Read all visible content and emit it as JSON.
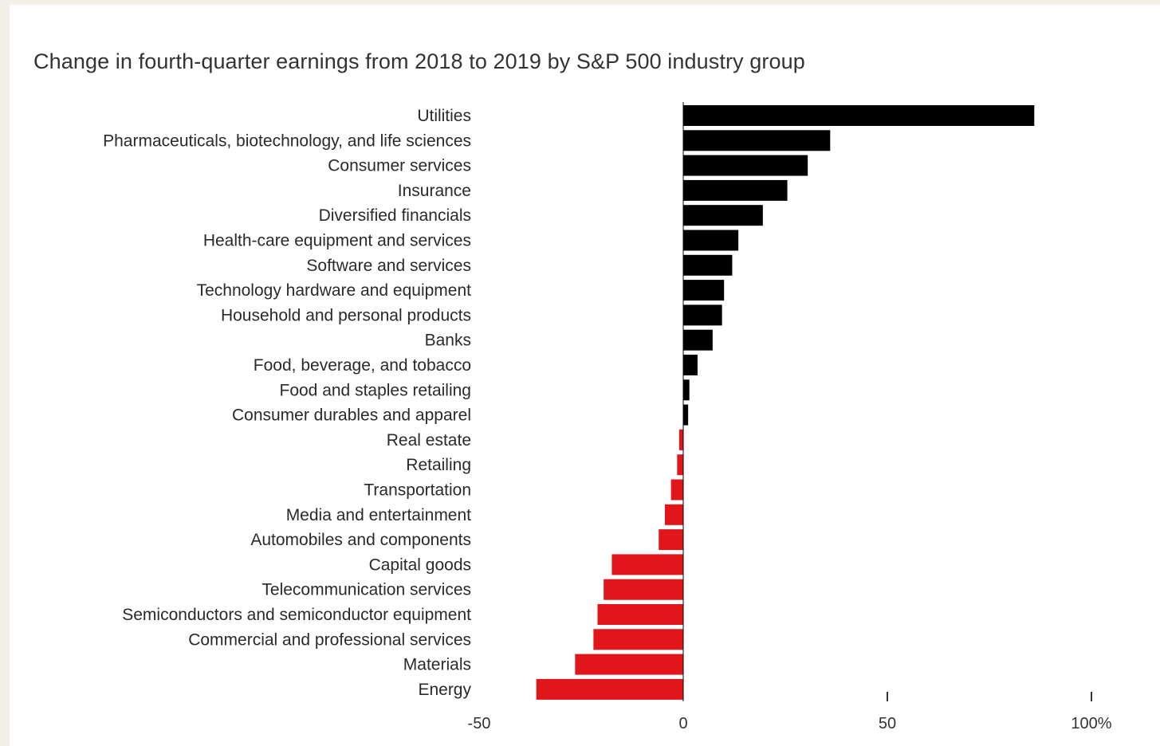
{
  "chart_data": {
    "type": "bar",
    "orientation": "horizontal",
    "title": "Change in fourth-quarter earnings from 2018 to 2019 by S&P 500 industry group",
    "categories": [
      "Utilities",
      "Pharmaceuticals, biotechnology, and life sciences",
      "Consumer services",
      "Insurance",
      "Diversified financials",
      "Health-care equipment and services",
      "Software and services",
      "Technology hardware and equipment",
      "Household and personal products",
      "Banks",
      "Food, beverage, and tobacco",
      "Food and staples retailing",
      "Consumer durables and apparel",
      "Real estate",
      "Retailing",
      "Transportation",
      "Media and entertainment",
      "Automobiles and components",
      "Capital goods",
      "Telecommunication services",
      "Semiconductors and semiconductor equipment",
      "Commercial and professional services",
      "Materials",
      "Energy"
    ],
    "values": [
      86,
      36,
      30.5,
      25.5,
      19.5,
      13.5,
      12,
      10,
      9.5,
      7.2,
      3.5,
      1.5,
      1.2,
      -1,
      -1.5,
      -3,
      -4.5,
      -6,
      -17.5,
      -19.5,
      -21,
      -22,
      -26.5,
      -36
    ],
    "xlim": [
      -50,
      100
    ],
    "x_ticks": [
      -50,
      0,
      50,
      100
    ],
    "x_tick_labels": [
      "-50",
      "0",
      "50",
      "100%"
    ],
    "colors": {
      "positive": "#000000",
      "negative": "#e0161b"
    },
    "grid": false,
    "legend": "none"
  }
}
